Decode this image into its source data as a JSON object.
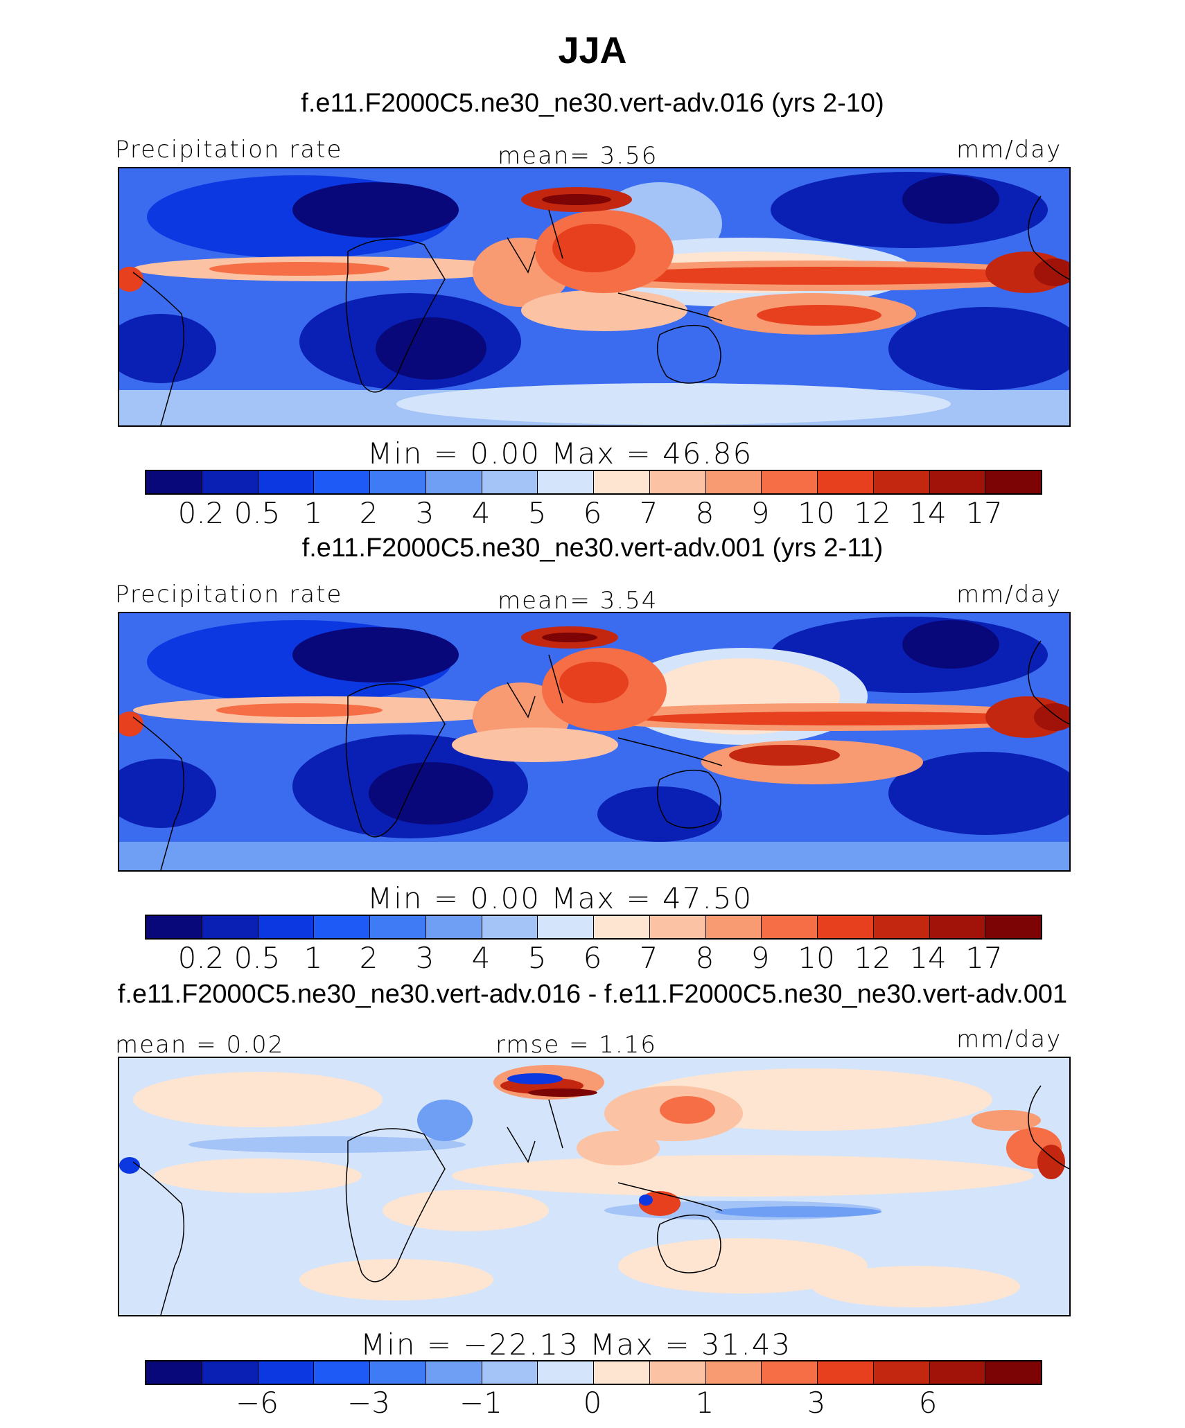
{
  "title": "JJA",
  "colors": [
    "#08087a",
    "#0a1fb4",
    "#0c38e2",
    "#1e5af5",
    "#3e7bf5",
    "#6f9ef5",
    "#a4c3f7",
    "#d4e4fa",
    "#fde5d2",
    "#fbc2a3",
    "#f89a72",
    "#f56e45",
    "#e7401f",
    "#c42710",
    "#a11308",
    "#7d0404"
  ],
  "panels": [
    {
      "case_label": "f.e11.F2000C5.ne30_ne30.vert-adv.016 (yrs 2-10)",
      "left_label": "Precipitation rate",
      "center_label": "mean=   3.56",
      "units": "mm/day",
      "min_text": "Min  =    0.00  Max  =   46.86",
      "ticks": [
        "0.2",
        "0.5",
        "1",
        "2",
        "3",
        "4",
        "5",
        "6",
        "7",
        "8",
        "9",
        "10",
        "12",
        "14",
        "17"
      ]
    },
    {
      "case_label": "f.e11.F2000C5.ne30_ne30.vert-adv.001 (yrs 2-11)",
      "left_label": "Precipitation rate",
      "center_label": "mean=   3.54",
      "units": "mm/day",
      "min_text": "Min  =    0.00  Max  =   47.50",
      "ticks": [
        "0.2",
        "0.5",
        "1",
        "2",
        "3",
        "4",
        "5",
        "6",
        "7",
        "8",
        "9",
        "10",
        "12",
        "14",
        "17"
      ]
    },
    {
      "case_label": "f.e11.F2000C5.ne30_ne30.vert-adv.016 - f.e11.F2000C5.ne30_ne30.vert-adv.001",
      "left_label": "mean  =   0.02",
      "center_label": "rmse  =   1.16",
      "units": "mm/day",
      "min_text": "Min  = −22.13  Max  =   31.43",
      "ticks": [
        "−6",
        "−3",
        "−1",
        "0",
        "1",
        "3",
        "6"
      ]
    }
  ]
}
